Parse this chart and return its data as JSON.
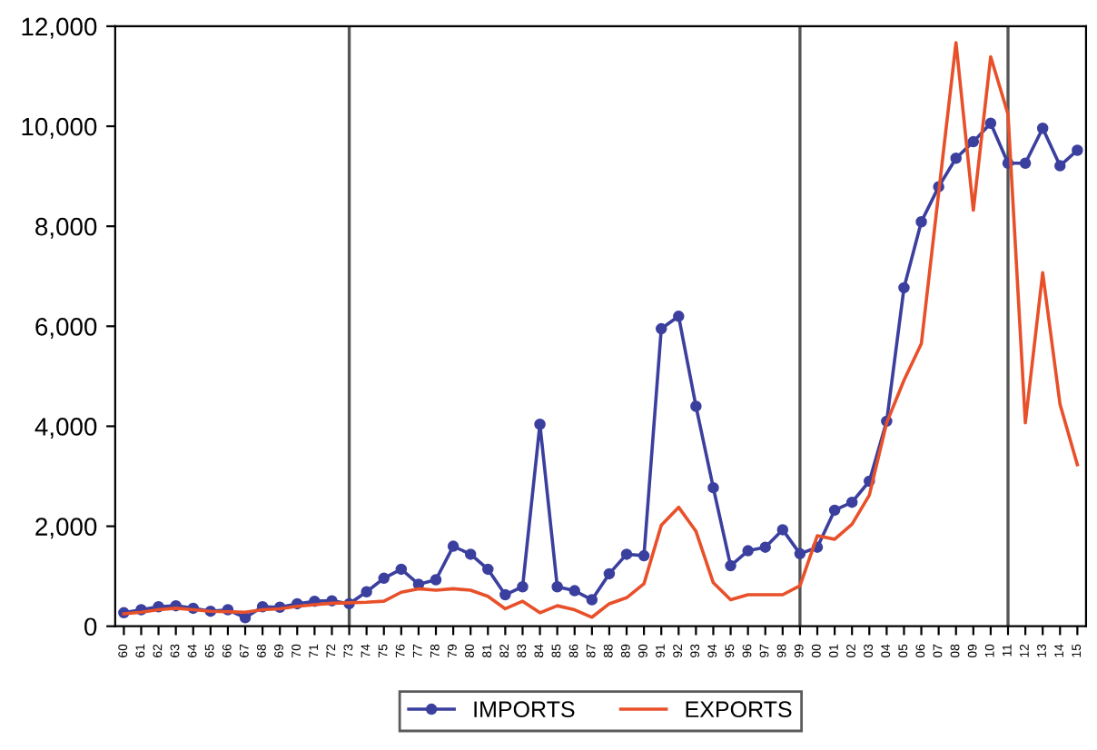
{
  "chart_data": {
    "type": "line",
    "categories": [
      "60",
      "61",
      "62",
      "63",
      "64",
      "65",
      "66",
      "67",
      "68",
      "69",
      "70",
      "71",
      "72",
      "73",
      "74",
      "75",
      "76",
      "77",
      "78",
      "79",
      "80",
      "81",
      "82",
      "83",
      "84",
      "85",
      "86",
      "87",
      "88",
      "89",
      "90",
      "91",
      "92",
      "93",
      "94",
      "95",
      "96",
      "97",
      "98",
      "99",
      "00",
      "01",
      "02",
      "03",
      "04",
      "05",
      "06",
      "07",
      "08",
      "09",
      "10",
      "11",
      "12",
      "13",
      "14",
      "15"
    ],
    "series": [
      {
        "name": "IMPORTS",
        "color": "#3b3f9e",
        "marker": "circle",
        "values": [
          270,
          330,
          390,
          410,
          360,
          300,
          330,
          170,
          390,
          380,
          450,
          500,
          510,
          450,
          690,
          960,
          1140,
          840,
          930,
          1600,
          1440,
          1140,
          630,
          790,
          4040,
          790,
          710,
          530,
          1050,
          1440,
          1410,
          5950,
          6200,
          4400,
          2770,
          1210,
          1510,
          1580,
          1930,
          1450,
          1580,
          2320,
          2480,
          2900,
          4100,
          6770,
          8090,
          8790,
          9360,
          9690,
          10060,
          9260,
          9260,
          9960,
          9210,
          9520
        ]
      },
      {
        "name": "EXPORTS",
        "color": "#e8502a",
        "marker": "none",
        "values": [
          250,
          280,
          330,
          360,
          330,
          300,
          290,
          280,
          330,
          350,
          400,
          430,
          460,
          470,
          480,
          500,
          680,
          750,
          720,
          750,
          720,
          600,
          350,
          500,
          270,
          410,
          330,
          180,
          450,
          570,
          850,
          2020,
          2380,
          1900,
          870,
          530,
          630,
          630,
          630,
          810,
          1810,
          1740,
          2040,
          2620,
          4070,
          4920,
          5650,
          8670,
          11670,
          8320,
          11390,
          10240,
          4070,
          7070,
          4440,
          3230
        ]
      }
    ],
    "ylim": [
      0,
      12000
    ],
    "yticks": [
      {
        "value": 0,
        "label": "0"
      },
      {
        "value": 2000,
        "label": "2,000"
      },
      {
        "value": 4000,
        "label": "4,000"
      },
      {
        "value": 6000,
        "label": "6,000"
      },
      {
        "value": 8000,
        "label": "8,000"
      },
      {
        "value": 10000,
        "label": "10,000"
      },
      {
        "value": 12000,
        "label": "12,000"
      }
    ],
    "ref_lines": [
      {
        "axis": "x",
        "value": "73",
        "color": "#555555"
      },
      {
        "axis": "x",
        "value": "99",
        "color": "#555555"
      },
      {
        "axis": "x",
        "value": "11",
        "color": "#555555"
      }
    ],
    "grid": false,
    "legend": "bottom"
  }
}
